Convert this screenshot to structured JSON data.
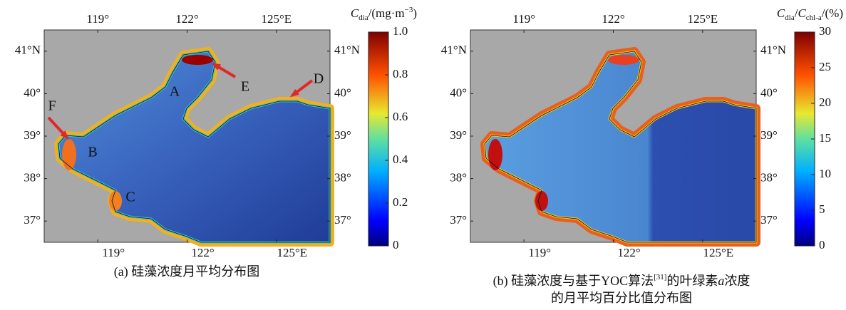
{
  "panels": [
    {
      "caption_parts": [
        "(a) 硅藻浓度月平均分布图"
      ],
      "map": {
        "xlim": [
          117.2,
          126.8
        ],
        "ylim": [
          36.5,
          41.5
        ],
        "xticks": [
          {
            "value": 119,
            "label": "119°"
          },
          {
            "value": 122,
            "label": "122°"
          },
          {
            "value": 125,
            "label": "125°E"
          }
        ],
        "yticks": [
          {
            "value": 37,
            "label": "37°"
          },
          {
            "value": 38,
            "label": "38°"
          },
          {
            "value": 39,
            "label": "39°"
          },
          {
            "value": 40,
            "label": "40°"
          },
          {
            "value": 41,
            "label": "41°N"
          }
        ]
      },
      "colorbar": {
        "title_parts": [
          "C",
          "dia",
          "/(mg·m",
          "−3",
          ")"
        ],
        "lim": [
          0,
          1
        ],
        "ticks": [
          0,
          0.2,
          0.4,
          0.6,
          0.8,
          {
            "value": 1,
            "label": "1.0"
          }
        ]
      },
      "annotations": [
        "A",
        "B",
        "C",
        "D",
        "E",
        "F"
      ]
    },
    {
      "caption_parts": [
        "(b) 硅藻浓度与基于YOC算法",
        "[31]",
        "的叶绿素",
        "a",
        "浓度",
        "的月平均百分比值分布图"
      ],
      "map": {
        "xlim": [
          117.2,
          126.8
        ],
        "ylim": [
          36.5,
          41.5
        ],
        "xticks": [
          {
            "value": 119,
            "label": "119°"
          },
          {
            "value": 122,
            "label": "122°"
          },
          {
            "value": 125,
            "label": "125°E"
          }
        ],
        "yticks": [
          {
            "value": 37,
            "label": "37°"
          },
          {
            "value": 38,
            "label": "38°"
          },
          {
            "value": 39,
            "label": "39°"
          },
          {
            "value": 40,
            "label": "40°"
          },
          {
            "value": 41,
            "label": "41°N"
          }
        ]
      },
      "colorbar": {
        "title_parts": [
          "C",
          "dia",
          "/",
          "C",
          "chl-a",
          "/(%)"
        ],
        "lim": [
          0,
          30
        ],
        "ticks": [
          0,
          5,
          10,
          15,
          20,
          25,
          30
        ]
      }
    }
  ]
}
